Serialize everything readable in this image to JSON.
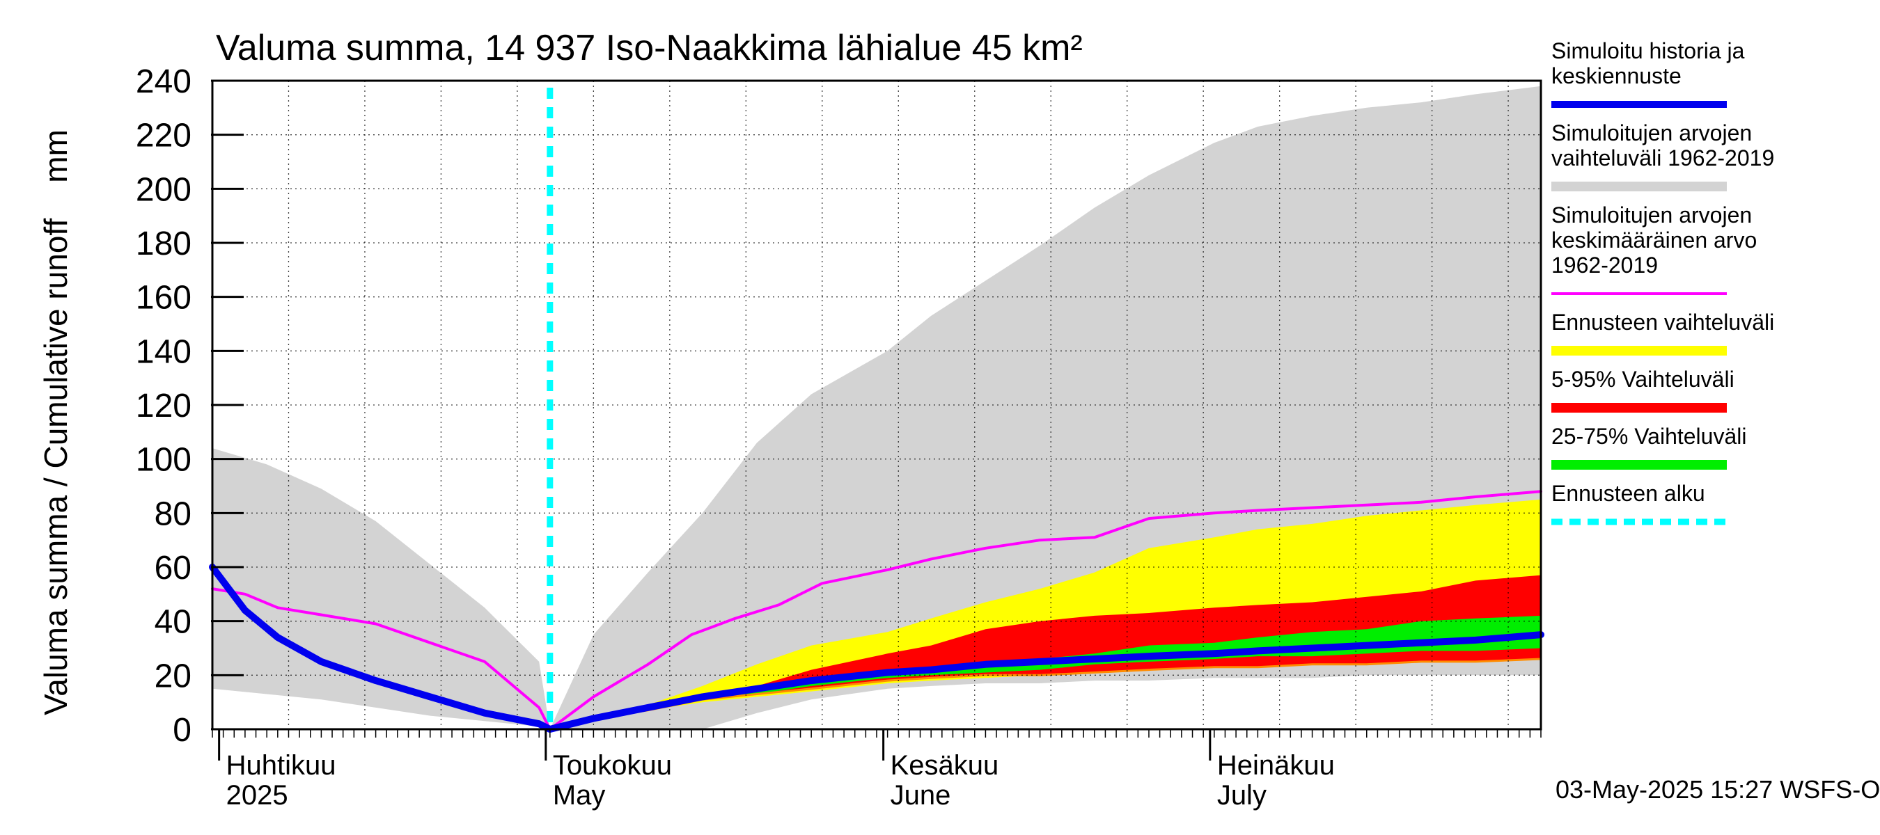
{
  "chart_data": {
    "type": "area",
    "title": "Valuma summa, 14 937 Iso-Naakkima lähialue 45 km²",
    "ylabel": "Valuma summa / Cumulative runoff    mm",
    "xlabel": "",
    "ylim": [
      0,
      240
    ],
    "yticks": [
      0,
      20,
      40,
      60,
      80,
      100,
      120,
      140,
      160,
      180,
      200,
      220,
      240
    ],
    "xlim": [
      "2025-03-31",
      "2025-07-31"
    ],
    "grid": true,
    "legend_position": "right",
    "month_labels": [
      {
        "date": "2025-04-01",
        "fi": "Huhtikuu",
        "en": "2025"
      },
      {
        "date": "2025-05-01",
        "fi": "Toukokuu",
        "en": "May"
      },
      {
        "date": "2025-06-01",
        "fi": "Kesäkuu",
        "en": "June"
      },
      {
        "date": "2025-07-01",
        "fi": "Heinäkuu",
        "en": "July"
      }
    ],
    "forecast_start": "2025-05-01",
    "timestamp": "03-May-2025 15:27 WSFS-O",
    "legend": [
      {
        "key": "history",
        "label": [
          "Simuloitu historia ja",
          "keskiennuste"
        ],
        "color": "#0000ee",
        "style": "line"
      },
      {
        "key": "range_hist",
        "label": [
          "Simuloitujen arvojen",
          "vaihteluväli 1962-2019"
        ],
        "color": "#d3d3d3",
        "style": "band"
      },
      {
        "key": "mean_hist",
        "label": [
          "Simuloitujen arvojen",
          "keskimääräinen arvo",
          "   1962-2019"
        ],
        "color": "#ff00ff",
        "style": "line"
      },
      {
        "key": "forecast_range",
        "label": [
          "Ennusteen vaihteluväli"
        ],
        "color": "#ffff00",
        "style": "band"
      },
      {
        "key": "p5_95",
        "label": [
          "5-95% Vaihteluväli"
        ],
        "color": "#ff0000",
        "style": "band"
      },
      {
        "key": "p25_75",
        "label": [
          "25-75% Vaihteluväli"
        ],
        "color": "#00ee00",
        "style": "band"
      },
      {
        "key": "forecast_start",
        "label": [
          "Ennusteen alku"
        ],
        "color": "#00ffff",
        "style": "dashed"
      }
    ],
    "series": [
      {
        "key": "range_hist",
        "x": [
          "2025-03-31",
          "2025-04-05",
          "2025-04-10",
          "2025-04-15",
          "2025-04-20",
          "2025-04-25",
          "2025-04-30",
          "2025-05-01",
          "2025-05-05",
          "2025-05-10",
          "2025-05-15",
          "2025-05-20",
          "2025-05-25",
          "2025-06-01",
          "2025-06-05",
          "2025-06-10",
          "2025-06-15",
          "2025-06-20",
          "2025-06-25",
          "2025-07-01",
          "2025-07-05",
          "2025-07-10",
          "2025-07-15",
          "2025-07-20",
          "2025-07-25",
          "2025-07-31"
        ],
        "upper": [
          104,
          98,
          89,
          77,
          61,
          45,
          25,
          0,
          35,
          58,
          80,
          106,
          124,
          140,
          153,
          166,
          179,
          193,
          205,
          217,
          223,
          227,
          230,
          232,
          235,
          238
        ],
        "lower": [
          15,
          13,
          11,
          8,
          5,
          3,
          1,
          0,
          0,
          0,
          0,
          6,
          11,
          15,
          16,
          17,
          17,
          18,
          18,
          19,
          19,
          19,
          20,
          20,
          20,
          20
        ]
      },
      {
        "key": "forecast_range",
        "x": [
          "2025-05-01",
          "2025-05-05",
          "2025-05-10",
          "2025-05-15",
          "2025-05-20",
          "2025-05-25",
          "2025-06-01",
          "2025-06-05",
          "2025-06-10",
          "2025-06-15",
          "2025-06-20",
          "2025-06-25",
          "2025-07-01",
          "2025-07-05",
          "2025-07-10",
          "2025-07-15",
          "2025-07-20",
          "2025-07-25",
          "2025-07-31"
        ],
        "upper": [
          0,
          5,
          9,
          16,
          24,
          31,
          36,
          41,
          47,
          52,
          58,
          67,
          71,
          74,
          76,
          79,
          81,
          83,
          85
        ],
        "lower": [
          0,
          4,
          7,
          10,
          12,
          14,
          17,
          18,
          19,
          20,
          21,
          22,
          23,
          23,
          24,
          24,
          25,
          25,
          26
        ]
      },
      {
        "key": "p5_95",
        "x": [
          "2025-05-01",
          "2025-05-05",
          "2025-05-10",
          "2025-05-15",
          "2025-05-20",
          "2025-05-25",
          "2025-06-01",
          "2025-06-05",
          "2025-06-10",
          "2025-06-15",
          "2025-06-20",
          "2025-06-25",
          "2025-07-01",
          "2025-07-05",
          "2025-07-10",
          "2025-07-15",
          "2025-07-20",
          "2025-07-25",
          "2025-07-31"
        ],
        "upper": [
          0,
          4,
          8,
          12,
          16,
          22,
          28,
          31,
          37,
          40,
          42,
          43,
          45,
          46,
          47,
          49,
          51,
          55,
          57
        ],
        "lower": [
          0,
          4,
          7,
          11,
          13,
          15,
          18,
          19,
          20,
          20,
          21,
          22,
          23,
          23,
          24,
          24,
          25,
          25,
          26
        ]
      },
      {
        "key": "p25_75",
        "x": [
          "2025-05-01",
          "2025-05-05",
          "2025-05-10",
          "2025-05-15",
          "2025-05-20",
          "2025-05-25",
          "2025-06-01",
          "2025-06-05",
          "2025-06-10",
          "2025-06-15",
          "2025-06-20",
          "2025-06-25",
          "2025-07-01",
          "2025-07-05",
          "2025-07-10",
          "2025-07-15",
          "2025-07-20",
          "2025-07-25",
          "2025-07-31"
        ],
        "upper": [
          0,
          4,
          8,
          11,
          14,
          17,
          20,
          22,
          24,
          26,
          28,
          31,
          32,
          34,
          36,
          37,
          40,
          41,
          42
        ],
        "lower": [
          0,
          4,
          7,
          11,
          13,
          16,
          19,
          20,
          21,
          22,
          24,
          25,
          26,
          27,
          27,
          28,
          29,
          29,
          30
        ]
      },
      {
        "key": "mean_hist",
        "x": [
          "2025-03-31",
          "2025-04-03",
          "2025-04-06",
          "2025-04-09",
          "2025-04-15",
          "2025-04-20",
          "2025-04-25",
          "2025-04-30",
          "2025-05-01",
          "2025-05-05",
          "2025-05-10",
          "2025-05-14",
          "2025-05-18",
          "2025-05-22",
          "2025-05-26",
          "2025-06-01",
          "2025-06-05",
          "2025-06-10",
          "2025-06-15",
          "2025-06-20",
          "2025-06-25",
          "2025-07-01",
          "2025-07-05",
          "2025-07-10",
          "2025-07-15",
          "2025-07-20",
          "2025-07-25",
          "2025-07-31"
        ],
        "y": [
          52,
          50,
          45,
          43,
          39,
          32,
          25,
          8,
          0,
          12,
          24,
          35,
          41,
          46,
          54,
          59,
          63,
          67,
          70,
          71,
          78,
          80,
          81,
          82,
          83,
          84,
          86,
          88
        ]
      },
      {
        "key": "history",
        "x": [
          "2025-03-31",
          "2025-04-03",
          "2025-04-06",
          "2025-04-10",
          "2025-04-15",
          "2025-04-20",
          "2025-04-25",
          "2025-04-30",
          "2025-05-01",
          "2025-05-05",
          "2025-05-10",
          "2025-05-15",
          "2025-05-20",
          "2025-05-25",
          "2025-06-01",
          "2025-06-05",
          "2025-06-10",
          "2025-06-15",
          "2025-06-20",
          "2025-06-25",
          "2025-07-01",
          "2025-07-05",
          "2025-07-10",
          "2025-07-15",
          "2025-07-20",
          "2025-07-25",
          "2025-07-31"
        ],
        "y": [
          60,
          44,
          34,
          25,
          18,
          12,
          6,
          2,
          0,
          4,
          8,
          12,
          15,
          18,
          21,
          22,
          24,
          25,
          26,
          27,
          28,
          29,
          30,
          31,
          32,
          33,
          35
        ]
      }
    ]
  }
}
